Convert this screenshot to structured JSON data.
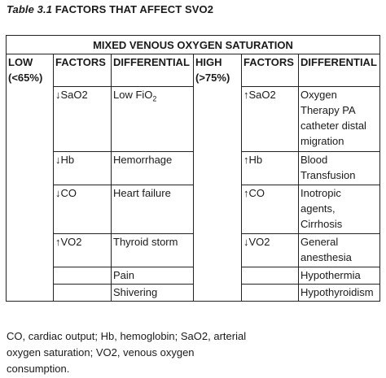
{
  "caption": {
    "prefix": "Table 3.1",
    "title": "FACTORS THAT AFFECT SVO2"
  },
  "table": {
    "title": "MIXED VENOUS OXYGEN SATURATION",
    "headers": {
      "low": "LOW (<65%)",
      "factors_low": "FACTORS",
      "differential_low": "DIFFERENTIAL",
      "high": "HIGH (>75%)",
      "factors_high": "FACTORS",
      "differential_high": "DIFFERENTIAL"
    },
    "rows": [
      {
        "f_low": "↓SaO2",
        "d_low_prefix": "Low FiO",
        "d_low_sub": "2",
        "f_high": "↑SaO2",
        "d_high": "Oxygen Therapy PA catheter distal migration"
      },
      {
        "f_low": "↓Hb",
        "d_low": "Hemorrhage",
        "f_high": "↑Hb",
        "d_high": "Blood Transfusion"
      },
      {
        "f_low": "↓CO",
        "d_low": "Heart failure",
        "f_high": "↑CO",
        "d_high": "Inotropic agents, Cirrhosis"
      },
      {
        "f_low": "↑VO2",
        "d_low": "Thyroid storm",
        "f_high": "↓VO2",
        "d_high": "General anesthesia"
      },
      {
        "f_low": "",
        "d_low": "Pain",
        "f_high": "",
        "d_high": "Hypothermia"
      },
      {
        "f_low": "",
        "d_low": "Shivering",
        "f_high": "",
        "d_high": "Hypothyroidism"
      }
    ]
  },
  "footnote": "CO, cardiac output; Hb, hemoglobin; SaO2, arterial oxygen saturation; VO2, venous oxygen consumption."
}
